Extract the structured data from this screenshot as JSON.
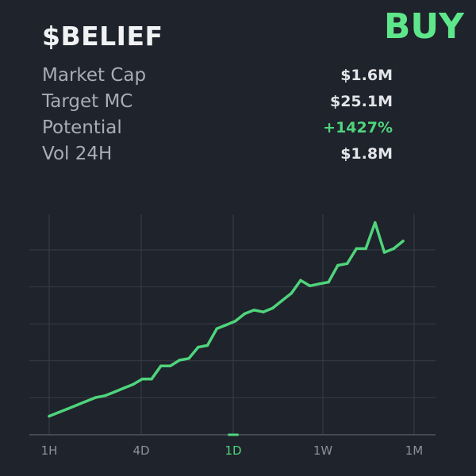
{
  "token": {
    "symbol": "$BELIEF"
  },
  "action": {
    "buy_label": "BUY"
  },
  "stats": [
    {
      "label": "Market Cap",
      "value": "$1.6M",
      "accent": false
    },
    {
      "label": "Target MC",
      "value": "$25.1M",
      "accent": false
    },
    {
      "label": "Potential",
      "value": "+1427%",
      "accent": true
    },
    {
      "label": "Vol 24H",
      "value": "$1.8M",
      "accent": false
    }
  ],
  "colors": {
    "background": "#1f232b",
    "accent": "#5ee68a",
    "line": "#4fd47c",
    "grid": "#383c45",
    "axis": "#52565e"
  },
  "chart_data": {
    "type": "line",
    "title": "",
    "xlabel": "",
    "ylabel": "",
    "timeframes": [
      "1H",
      "4D",
      "1D",
      "1W",
      "1M"
    ],
    "active_timeframe": "1D",
    "y_gridlines": 5,
    "ylim": [
      0,
      100
    ],
    "grid": true,
    "series": [
      {
        "values": [
          8.4,
          10.1,
          11.8,
          13.5,
          15.2,
          16.9,
          17.7,
          19.4,
          21.1,
          22.8,
          25.3,
          25.3,
          31.2,
          31.2,
          33.8,
          34.6,
          39.7,
          40.5,
          48.1,
          49.8,
          51.5,
          54.9,
          56.5,
          55.7,
          57.4,
          60.8,
          64.1,
          70.0,
          67.5,
          68.4,
          69.2,
          76.8,
          77.6,
          84.4,
          84.4,
          96.2,
          82.7,
          84.4,
          87.8
        ]
      }
    ]
  }
}
